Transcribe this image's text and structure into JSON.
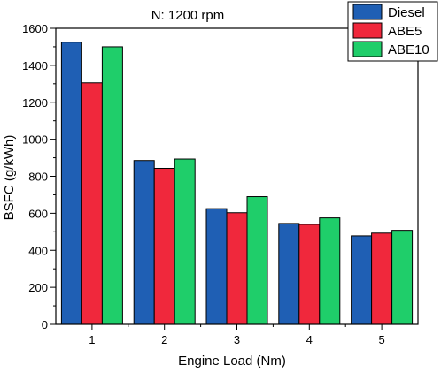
{
  "chart_data": {
    "type": "bar",
    "title": "N: 1200 rpm",
    "xlabel": "Engine Load (Nm)",
    "ylabel": "BSFC (g/kWh)",
    "categories": [
      "1",
      "2",
      "3",
      "4",
      "5"
    ],
    "ylim": [
      0,
      1600
    ],
    "yticks": [
      0,
      200,
      400,
      600,
      800,
      1000,
      1200,
      1400,
      1600
    ],
    "grid": false,
    "legend_position": "top-right",
    "series": [
      {
        "name": "Diesel",
        "color": "#1f5fb4",
        "values": [
          1525,
          885,
          625,
          545,
          478
        ]
      },
      {
        "name": "ABE5",
        "color": "#f0283c",
        "values": [
          1305,
          843,
          603,
          540,
          493
        ]
      },
      {
        "name": "ABE10",
        "color": "#1fce6a",
        "values": [
          1500,
          893,
          690,
          575,
          508
        ]
      }
    ]
  }
}
